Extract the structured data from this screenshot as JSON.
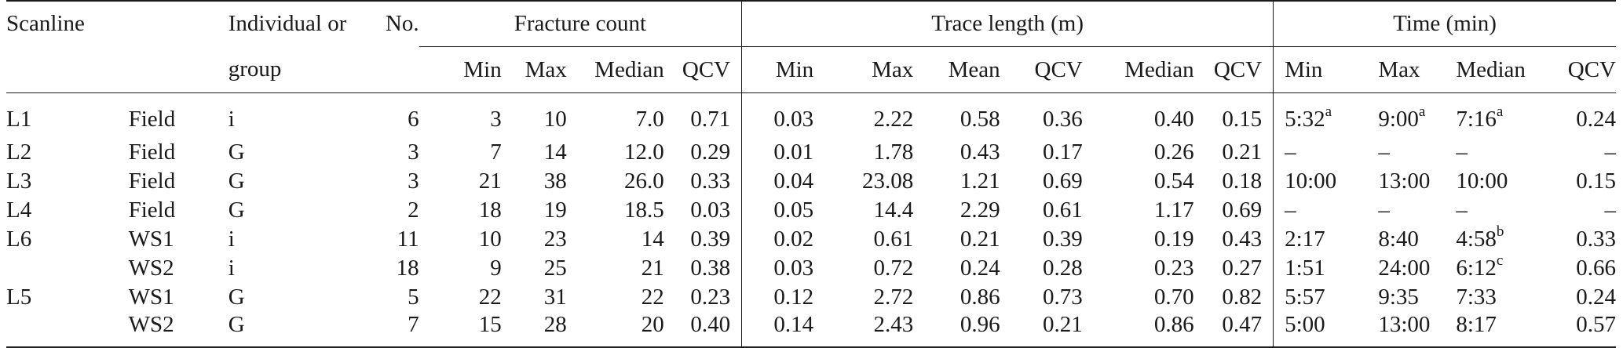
{
  "header": {
    "scanline": "Scanline",
    "individual_or": "Individual or",
    "group": "group",
    "no": "No.",
    "fracture_count": "Fracture count",
    "trace_length": "Trace length (m)",
    "time": "Time (min)",
    "min": "Min",
    "max": "Max",
    "median": "Median",
    "mean": "Mean",
    "qcv": "QCV"
  },
  "rows": [
    {
      "scanline": "L1",
      "source": "Field",
      "ig": "i",
      "no": "6",
      "fc_min": "3",
      "fc_max": "10",
      "fc_median": "7.0",
      "fc_qcv": "0.71",
      "tl_min": "0.03",
      "tl_max": "2.22",
      "tl_mean": "0.58",
      "tl_qcv": "0.36",
      "tl_median": "0.40",
      "tl_qcv2": "0.15",
      "t_min": "5:32",
      "t_min_sup": "a",
      "t_max": "9:00",
      "t_max_sup": "a",
      "t_median": "7:16",
      "t_median_sup": "a",
      "t_qcv": "0.24"
    },
    {
      "scanline": "L2",
      "source": "Field",
      "ig": "G",
      "no": "3",
      "fc_min": "7",
      "fc_max": "14",
      "fc_median": "12.0",
      "fc_qcv": "0.29",
      "tl_min": "0.01",
      "tl_max": "1.78",
      "tl_mean": "0.43",
      "tl_qcv": "0.17",
      "tl_median": "0.26",
      "tl_qcv2": "0.21",
      "t_min": "–",
      "t_min_sup": "",
      "t_max": "–",
      "t_max_sup": "",
      "t_median": "–",
      "t_median_sup": "",
      "t_qcv": "–"
    },
    {
      "scanline": "L3",
      "source": "Field",
      "ig": "G",
      "no": "3",
      "fc_min": "21",
      "fc_max": "38",
      "fc_median": "26.0",
      "fc_qcv": "0.33",
      "tl_min": "0.04",
      "tl_max": "23.08",
      "tl_mean": "1.21",
      "tl_qcv": "0.69",
      "tl_median": "0.54",
      "tl_qcv2": "0.18",
      "t_min": "10:00",
      "t_min_sup": "",
      "t_max": "13:00",
      "t_max_sup": "",
      "t_median": "10:00",
      "t_median_sup": "",
      "t_qcv": "0.15"
    },
    {
      "scanline": "L4",
      "source": "Field",
      "ig": "G",
      "no": "2",
      "fc_min": "18",
      "fc_max": "19",
      "fc_median": "18.5",
      "fc_qcv": "0.03",
      "tl_min": "0.05",
      "tl_max": "14.4",
      "tl_mean": "2.29",
      "tl_qcv": "0.61",
      "tl_median": "1.17",
      "tl_qcv2": "0.69",
      "t_min": "–",
      "t_min_sup": "",
      "t_max": "–",
      "t_max_sup": "",
      "t_median": "–",
      "t_median_sup": "",
      "t_qcv": "–"
    },
    {
      "scanline": "L6",
      "source": "WS1",
      "ig": "i",
      "no": "11",
      "fc_min": "10",
      "fc_max": "23",
      "fc_median": "14",
      "fc_qcv": "0.39",
      "tl_min": "0.02",
      "tl_max": "0.61",
      "tl_mean": "0.21",
      "tl_qcv": "0.39",
      "tl_median": "0.19",
      "tl_qcv2": "0.43",
      "t_min": "2:17",
      "t_min_sup": "",
      "t_max": "8:40",
      "t_max_sup": "",
      "t_median": "4:58",
      "t_median_sup": "b",
      "t_qcv": "0.33"
    },
    {
      "scanline": "",
      "source": "WS2",
      "ig": "i",
      "no": "18",
      "fc_min": "9",
      "fc_max": "25",
      "fc_median": "21",
      "fc_qcv": "0.38",
      "tl_min": "0.03",
      "tl_max": "0.72",
      "tl_mean": "0.24",
      "tl_qcv": "0.28",
      "tl_median": "0.23",
      "tl_qcv2": "0.27",
      "t_min": "1:51",
      "t_min_sup": "",
      "t_max": "24:00",
      "t_max_sup": "",
      "t_median": "6:12",
      "t_median_sup": "c",
      "t_qcv": "0.66"
    },
    {
      "scanline": "L5",
      "source": "WS1",
      "ig": "G",
      "no": "5",
      "fc_min": "22",
      "fc_max": "31",
      "fc_median": "22",
      "fc_qcv": "0.23",
      "tl_min": "0.12",
      "tl_max": "2.72",
      "tl_mean": "0.86",
      "tl_qcv": "0.73",
      "tl_median": "0.70",
      "tl_qcv2": "0.82",
      "t_min": "5:57",
      "t_min_sup": "",
      "t_max": "9:35",
      "t_max_sup": "",
      "t_median": "7:33",
      "t_median_sup": "",
      "t_qcv": "0.24"
    },
    {
      "scanline": "",
      "source": "WS2",
      "ig": "G",
      "no": "7",
      "fc_min": "15",
      "fc_max": "28",
      "fc_median": "20",
      "fc_qcv": "0.40",
      "tl_min": "0.14",
      "tl_max": "2.43",
      "tl_mean": "0.96",
      "tl_qcv": "0.21",
      "tl_median": "0.86",
      "tl_qcv2": "0.47",
      "t_min": "5:00",
      "t_min_sup": "",
      "t_max": "13:00",
      "t_max_sup": "",
      "t_median": "8:17",
      "t_median_sup": "",
      "t_qcv": "0.57"
    }
  ]
}
